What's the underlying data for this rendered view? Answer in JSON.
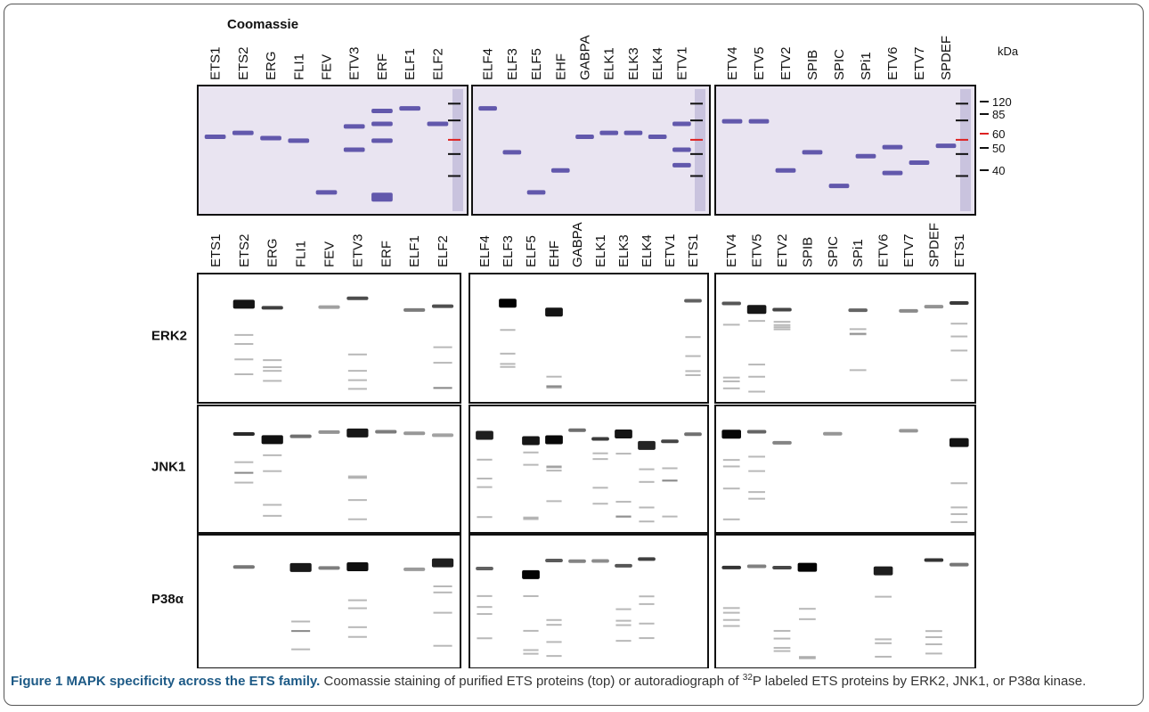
{
  "header": {
    "title": "Coomassie"
  },
  "top_panels": [
    {
      "lanes": [
        "ETS1",
        "ETS2",
        "ERG",
        "FLI1",
        "FEV",
        "ETV3",
        "ERF",
        "ELF1",
        "ELF2"
      ]
    },
    {
      "lanes": [
        "ELF4",
        "ELF3",
        "ELF5",
        "EHF",
        "GABPA",
        "ELK1",
        "ELK3",
        "ELK4",
        "ETV1"
      ]
    },
    {
      "lanes": [
        "ETV4",
        "ETV5",
        "ETV2",
        "SPIB",
        "SPIC",
        "SPi1",
        "ETV6",
        "ETV7",
        "SPDEF"
      ]
    }
  ],
  "markers": {
    "unit": "kDa",
    "labels": [
      "120",
      "85",
      "60",
      "50",
      "40"
    ]
  },
  "bottom_panels": [
    {
      "lanes": [
        "ETS1",
        "ETS2",
        "ERG",
        "FLI1",
        "FEV",
        "ETV3",
        "ERF",
        "ELF1",
        "ELF2"
      ]
    },
    {
      "lanes": [
        "ELF4",
        "ELF3",
        "ELF5",
        "EHF",
        "GABPA",
        "ELK1",
        "ELK3",
        "ELK4",
        "ETV1",
        "ETS1"
      ]
    },
    {
      "lanes": [
        "ETV4",
        "ETV5",
        "ETV2",
        "SPIB",
        "SPIC",
        "SPi1",
        "ETV6",
        "ETV7",
        "SPDEF",
        "ETS1"
      ]
    }
  ],
  "rows": [
    "ERK2",
    "JNK1",
    "P38α"
  ],
  "caption": {
    "label": "Figure 1 MAPK specificity across the ETS family.",
    "text_before": " Coomassie staining of purified ETS proteins (top) or autoradiograph of ",
    "superscript": "32",
    "text_after": "P labeled ETS proteins by ERK2, JNK1, or P38α kinase."
  }
}
